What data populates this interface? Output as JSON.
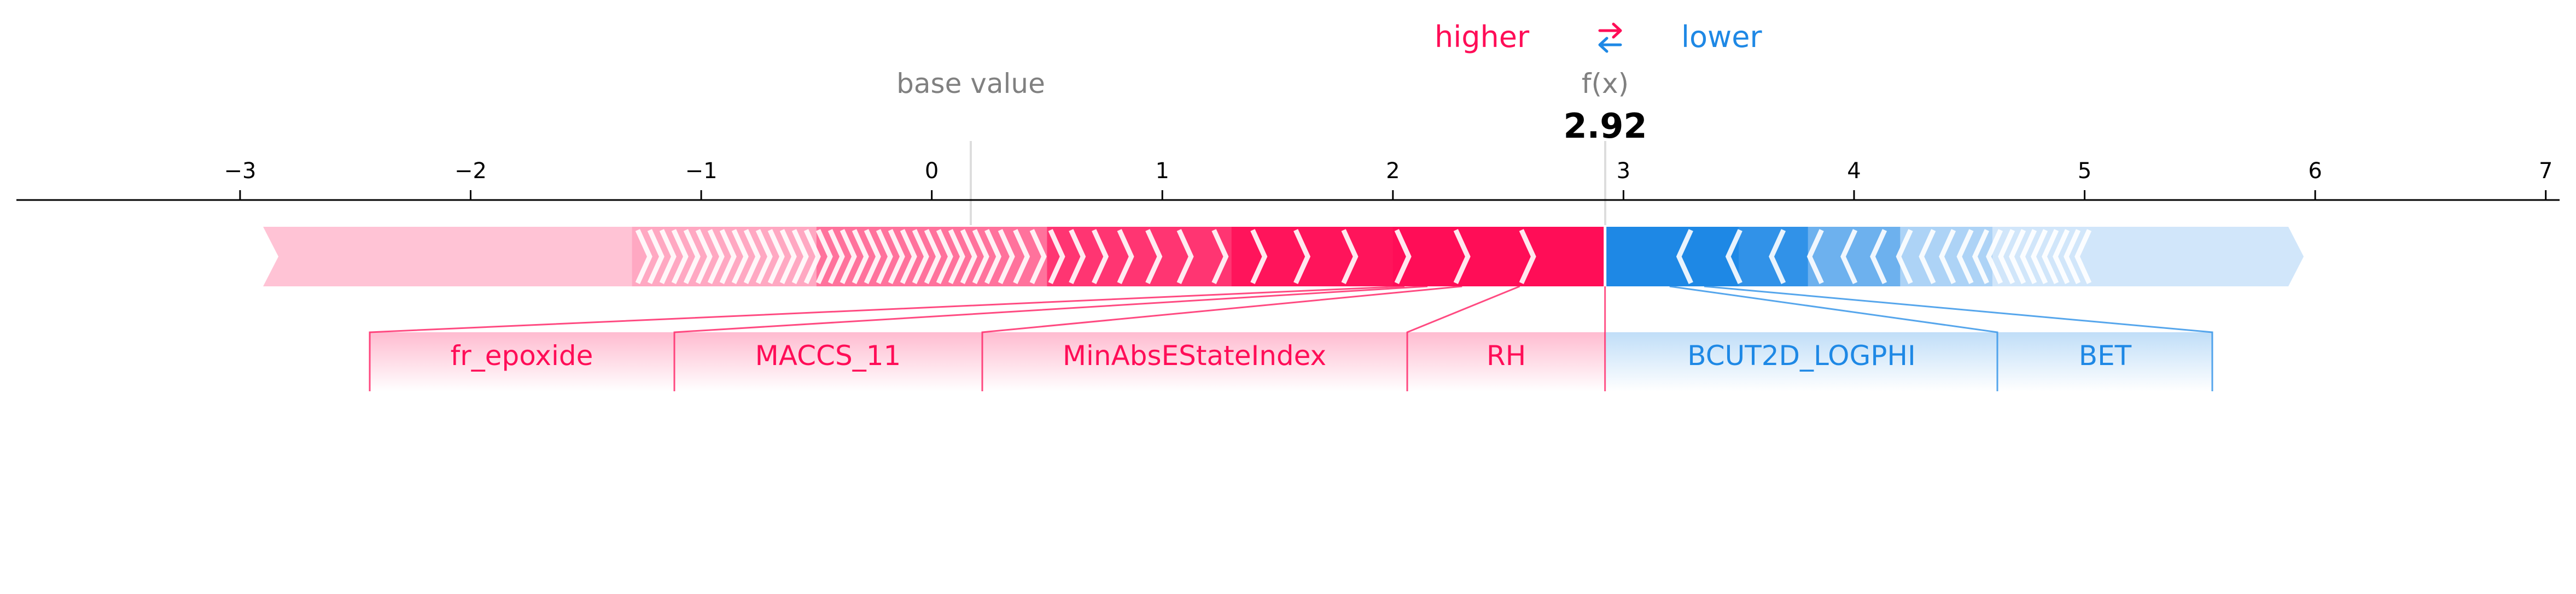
{
  "legend": {
    "higher_label": "higher",
    "lower_label": "lower",
    "arrows_icon": "swap-arrows-icon"
  },
  "colors": {
    "positive": "#ff0d57",
    "positive_light": "#ffc3d5",
    "negative": "#1e88e5",
    "negative_light": "#d1e6fa",
    "axis": "#000000",
    "muted_text": "#808080"
  },
  "chart_data": {
    "type": "force",
    "base_value_label": "base value",
    "output_label": "f(x)",
    "output_value": "2.92",
    "base_value": 0.17,
    "fx_value": 2.92,
    "xlim": [
      -3.97,
      7.06
    ],
    "x_ticks": [
      -3,
      -2,
      -1,
      0,
      1,
      2,
      3,
      4,
      5,
      6,
      7
    ],
    "x_tick_labels": [
      "−3",
      "−2",
      "−1",
      "0",
      "1",
      "2",
      "3",
      "4",
      "5",
      "6",
      "7"
    ],
    "positive_range": [
      -2.9,
      2.92
    ],
    "negative_range": [
      2.92,
      5.95
    ],
    "features": [
      {
        "name": "RH",
        "direction": "higher",
        "end": 2.55
      },
      {
        "name": "MinAbsEStateIndex",
        "direction": "higher",
        "end": 2.3
      },
      {
        "name": "MACCS_11",
        "direction": "higher",
        "end": 2.15
      },
      {
        "name": "fr_epoxide",
        "direction": "higher",
        "end": 2.05
      },
      {
        "name": "BCUT2D_LOGPHI",
        "direction": "lower",
        "end": 3.2
      },
      {
        "name": "BET",
        "direction": "lower",
        "end": 3.35
      }
    ]
  }
}
